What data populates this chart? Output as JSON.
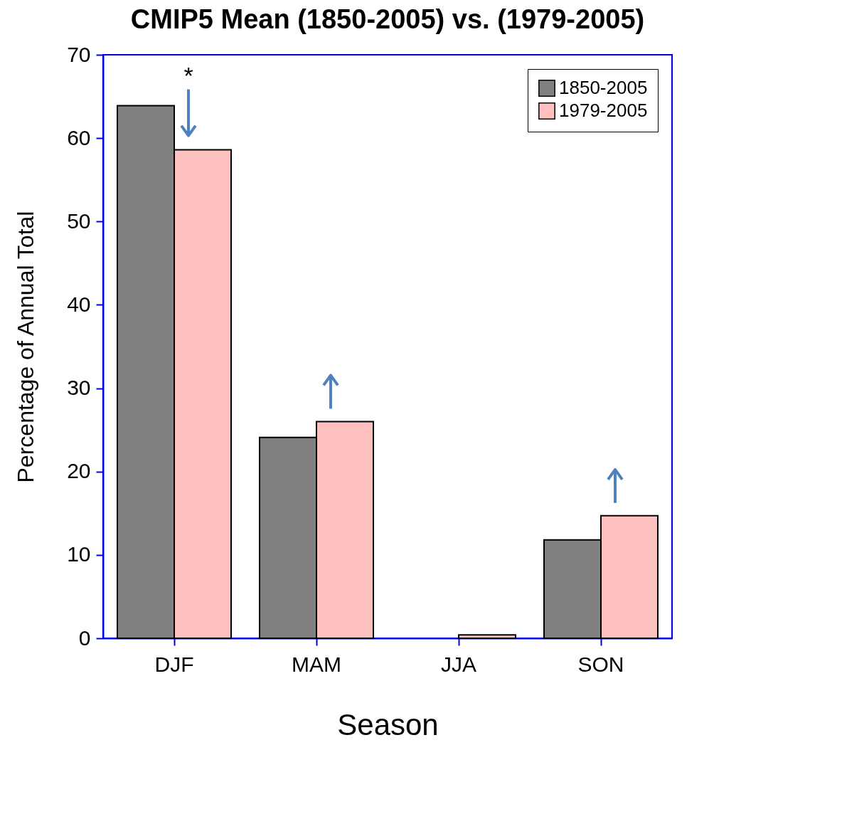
{
  "chart_data": {
    "type": "bar",
    "title": "CMIP5 Mean (1850-2005) vs. (1979-2005)",
    "xlabel": "Season",
    "ylabel": "Percentage of Annual Total",
    "categories": [
      "DJF",
      "MAM",
      "JJA",
      "SON"
    ],
    "series": [
      {
        "name": "1850-2005",
        "color": "#808080",
        "values": [
          63.9,
          24.1,
          0,
          11.8
        ]
      },
      {
        "name": "1979-2005",
        "color": "#ffc0c0",
        "values": [
          58.6,
          26.0,
          0.4,
          14.7
        ]
      }
    ],
    "ylim": [
      0,
      70
    ],
    "yticks": [
      0,
      10,
      20,
      30,
      40,
      50,
      60,
      70
    ],
    "grid": false,
    "legend": "top right",
    "annotations": [
      "*"
    ]
  }
}
